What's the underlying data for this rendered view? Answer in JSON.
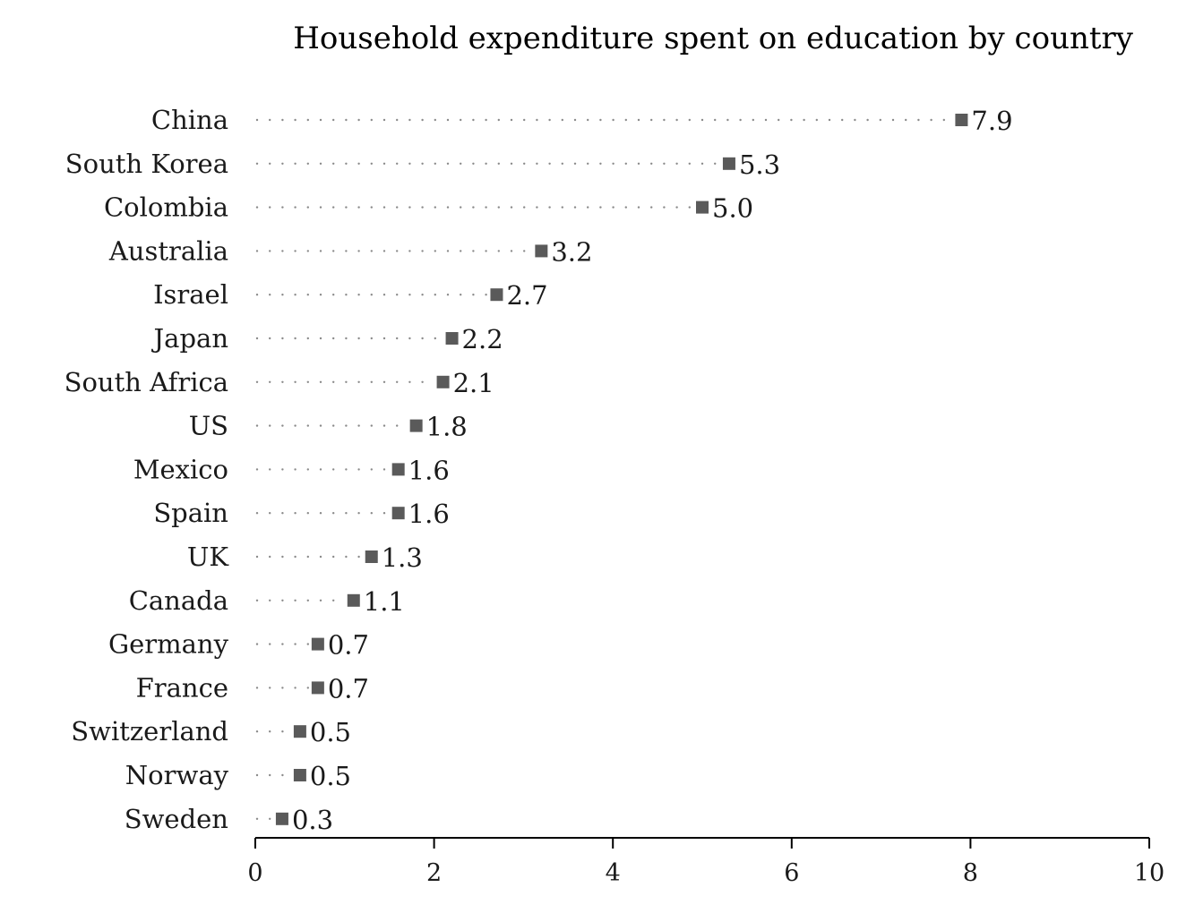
{
  "chart_data": {
    "type": "scatter",
    "title": "Household expenditure spent on education by country",
    "categories": [
      "China",
      "South Korea",
      "Colombia",
      "Australia",
      "Israel",
      "Japan",
      "South Africa",
      "US",
      "Mexico",
      "Spain",
      "UK",
      "Canada",
      "Germany",
      "France",
      "Switzerland",
      "Norway",
      "Sweden"
    ],
    "values": [
      7.9,
      5.3,
      5.0,
      3.2,
      2.7,
      2.2,
      2.1,
      1.8,
      1.6,
      1.6,
      1.3,
      1.1,
      0.7,
      0.7,
      0.5,
      0.5,
      0.3
    ],
    "value_labels": [
      "7.9",
      "5.3",
      "5.0",
      "3.2",
      "2.7",
      "2.2",
      "2.1",
      "1.8",
      "1.6",
      "1.6",
      "1.3",
      "1.1",
      "0.7",
      "0.7",
      "0.5",
      "0.5",
      "0.3"
    ],
    "xlim": [
      0,
      10
    ],
    "xticks": [
      0,
      2,
      4,
      6,
      8,
      10
    ],
    "xtick_labels": [
      "0",
      "2",
      "4",
      "6",
      "8",
      "10"
    ],
    "xlabel": "",
    "ylabel": "",
    "grid": false,
    "legend": "none",
    "marker": "square",
    "guide_lines": "dotted",
    "colors": {
      "marker": "#5a5a5a",
      "dots": "#8a8a8a",
      "text": "#1a1a1a"
    }
  }
}
